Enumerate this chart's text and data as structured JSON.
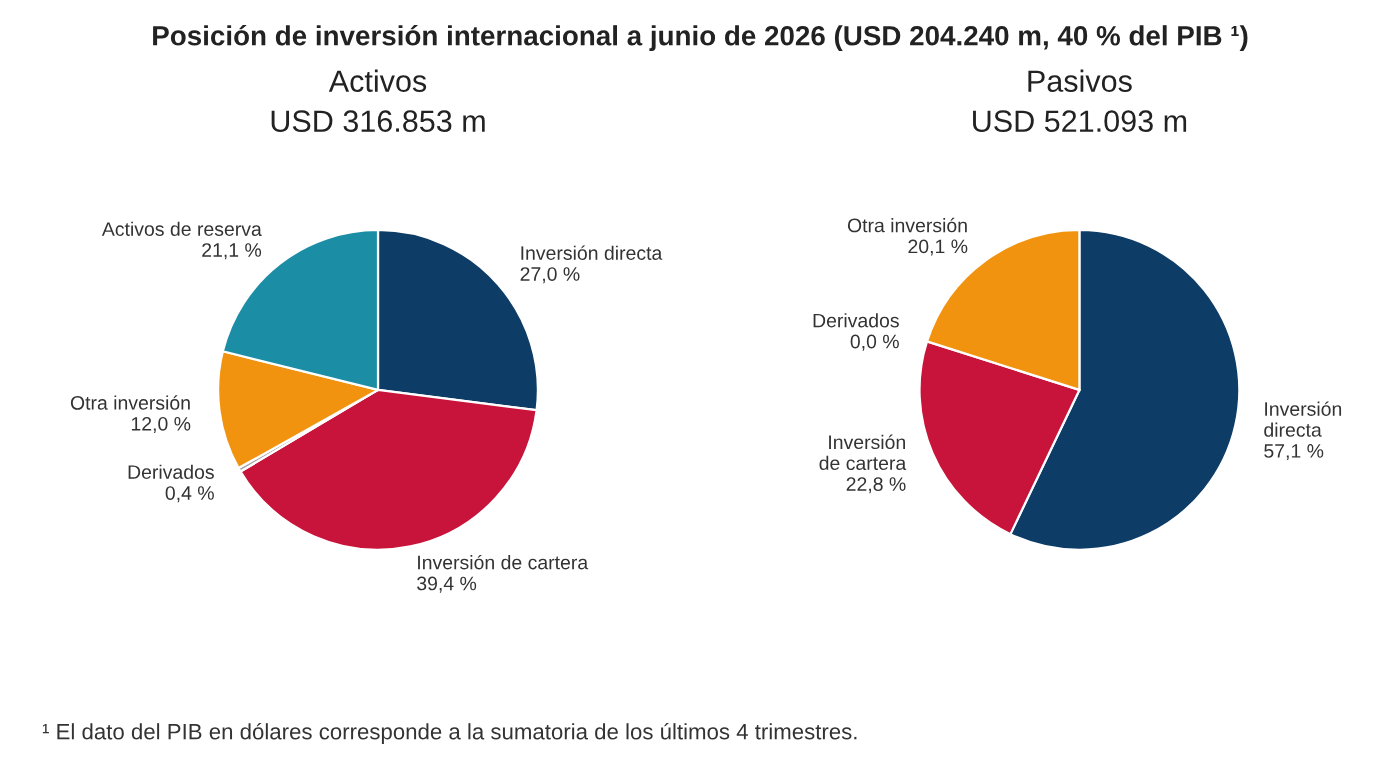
{
  "chart_data": [
    {
      "type": "pie",
      "title": "Activos",
      "subtitle": "USD 316.853 m",
      "categories": [
        "Inversión directa",
        "Inversión de cartera",
        "Derivados",
        "Otra inversión",
        "Activos de reserva"
      ],
      "values": [
        27.0,
        39.4,
        0.4,
        12.0,
        21.1
      ],
      "colors": [
        "#0d3c66",
        "#c8133a",
        "#a8a8a8",
        "#f2930f",
        "#1b8ea6"
      ],
      "value_labels": [
        "27,0 %",
        "39,4 %",
        "0,4 %",
        "12,0 %",
        "21,1 %"
      ],
      "annotations": [
        "Posición de inversión internacional a junio de 2026 (USD 204.240 m, 40 % del PIB ¹)",
        "¹ El dato del PIB en dólares corresponde a la sumatoria de los últimos 4 trimestres."
      ]
    },
    {
      "type": "pie",
      "title": "Pasivos",
      "subtitle": "USD 521.093 m",
      "categories": [
        "Inversión\ndirecta",
        "Inversión\nde cartera",
        "Derivados",
        "Otra inversión"
      ],
      "values": [
        57.1,
        22.8,
        0.0,
        20.1
      ],
      "colors": [
        "#0d3c66",
        "#c8133a",
        "#a8a8a8",
        "#f2930f"
      ],
      "value_labels": [
        "57,1 %",
        "22,8 %",
        "0,0 %",
        "20,1 %"
      ]
    }
  ]
}
